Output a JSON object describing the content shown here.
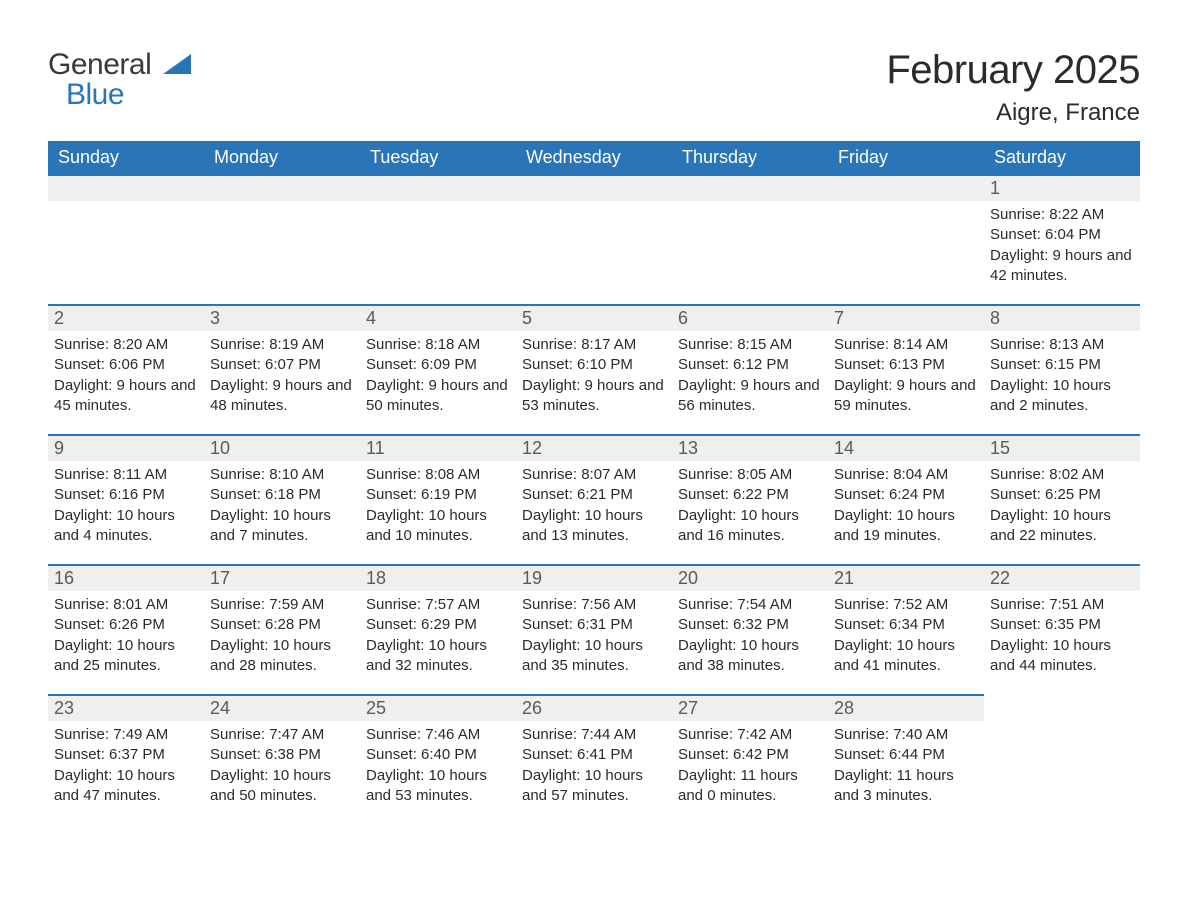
{
  "logo": {
    "text_general": "General",
    "text_blue": "Blue",
    "triangle_color": "#2a74b8"
  },
  "title": "February 2025",
  "location": "Aigre, France",
  "colors": {
    "header_bg": "#2a74b8",
    "header_text": "#ffffff",
    "daybar_bg": "#efefef",
    "daybar_border": "#2a74b8",
    "body_text": "#2b2b2b",
    "daynum_text": "#5a5a5a",
    "page_bg": "#ffffff"
  },
  "weekdays": [
    "Sunday",
    "Monday",
    "Tuesday",
    "Wednesday",
    "Thursday",
    "Friday",
    "Saturday"
  ],
  "weeks": [
    [
      {
        "empty": true
      },
      {
        "empty": true
      },
      {
        "empty": true
      },
      {
        "empty": true
      },
      {
        "empty": true
      },
      {
        "empty": true
      },
      {
        "day": "1",
        "sunrise": "Sunrise: 8:22 AM",
        "sunset": "Sunset: 6:04 PM",
        "daylight": "Daylight: 9 hours and 42 minutes."
      }
    ],
    [
      {
        "day": "2",
        "sunrise": "Sunrise: 8:20 AM",
        "sunset": "Sunset: 6:06 PM",
        "daylight": "Daylight: 9 hours and 45 minutes."
      },
      {
        "day": "3",
        "sunrise": "Sunrise: 8:19 AM",
        "sunset": "Sunset: 6:07 PM",
        "daylight": "Daylight: 9 hours and 48 minutes."
      },
      {
        "day": "4",
        "sunrise": "Sunrise: 8:18 AM",
        "sunset": "Sunset: 6:09 PM",
        "daylight": "Daylight: 9 hours and 50 minutes."
      },
      {
        "day": "5",
        "sunrise": "Sunrise: 8:17 AM",
        "sunset": "Sunset: 6:10 PM",
        "daylight": "Daylight: 9 hours and 53 minutes."
      },
      {
        "day": "6",
        "sunrise": "Sunrise: 8:15 AM",
        "sunset": "Sunset: 6:12 PM",
        "daylight": "Daylight: 9 hours and 56 minutes."
      },
      {
        "day": "7",
        "sunrise": "Sunrise: 8:14 AM",
        "sunset": "Sunset: 6:13 PM",
        "daylight": "Daylight: 9 hours and 59 minutes."
      },
      {
        "day": "8",
        "sunrise": "Sunrise: 8:13 AM",
        "sunset": "Sunset: 6:15 PM",
        "daylight": "Daylight: 10 hours and 2 minutes."
      }
    ],
    [
      {
        "day": "9",
        "sunrise": "Sunrise: 8:11 AM",
        "sunset": "Sunset: 6:16 PM",
        "daylight": "Daylight: 10 hours and 4 minutes."
      },
      {
        "day": "10",
        "sunrise": "Sunrise: 8:10 AM",
        "sunset": "Sunset: 6:18 PM",
        "daylight": "Daylight: 10 hours and 7 minutes."
      },
      {
        "day": "11",
        "sunrise": "Sunrise: 8:08 AM",
        "sunset": "Sunset: 6:19 PM",
        "daylight": "Daylight: 10 hours and 10 minutes."
      },
      {
        "day": "12",
        "sunrise": "Sunrise: 8:07 AM",
        "sunset": "Sunset: 6:21 PM",
        "daylight": "Daylight: 10 hours and 13 minutes."
      },
      {
        "day": "13",
        "sunrise": "Sunrise: 8:05 AM",
        "sunset": "Sunset: 6:22 PM",
        "daylight": "Daylight: 10 hours and 16 minutes."
      },
      {
        "day": "14",
        "sunrise": "Sunrise: 8:04 AM",
        "sunset": "Sunset: 6:24 PM",
        "daylight": "Daylight: 10 hours and 19 minutes."
      },
      {
        "day": "15",
        "sunrise": "Sunrise: 8:02 AM",
        "sunset": "Sunset: 6:25 PM",
        "daylight": "Daylight: 10 hours and 22 minutes."
      }
    ],
    [
      {
        "day": "16",
        "sunrise": "Sunrise: 8:01 AM",
        "sunset": "Sunset: 6:26 PM",
        "daylight": "Daylight: 10 hours and 25 minutes."
      },
      {
        "day": "17",
        "sunrise": "Sunrise: 7:59 AM",
        "sunset": "Sunset: 6:28 PM",
        "daylight": "Daylight: 10 hours and 28 minutes."
      },
      {
        "day": "18",
        "sunrise": "Sunrise: 7:57 AM",
        "sunset": "Sunset: 6:29 PM",
        "daylight": "Daylight: 10 hours and 32 minutes."
      },
      {
        "day": "19",
        "sunrise": "Sunrise: 7:56 AM",
        "sunset": "Sunset: 6:31 PM",
        "daylight": "Daylight: 10 hours and 35 minutes."
      },
      {
        "day": "20",
        "sunrise": "Sunrise: 7:54 AM",
        "sunset": "Sunset: 6:32 PM",
        "daylight": "Daylight: 10 hours and 38 minutes."
      },
      {
        "day": "21",
        "sunrise": "Sunrise: 7:52 AM",
        "sunset": "Sunset: 6:34 PM",
        "daylight": "Daylight: 10 hours and 41 minutes."
      },
      {
        "day": "22",
        "sunrise": "Sunrise: 7:51 AM",
        "sunset": "Sunset: 6:35 PM",
        "daylight": "Daylight: 10 hours and 44 minutes."
      }
    ],
    [
      {
        "day": "23",
        "sunrise": "Sunrise: 7:49 AM",
        "sunset": "Sunset: 6:37 PM",
        "daylight": "Daylight: 10 hours and 47 minutes."
      },
      {
        "day": "24",
        "sunrise": "Sunrise: 7:47 AM",
        "sunset": "Sunset: 6:38 PM",
        "daylight": "Daylight: 10 hours and 50 minutes."
      },
      {
        "day": "25",
        "sunrise": "Sunrise: 7:46 AM",
        "sunset": "Sunset: 6:40 PM",
        "daylight": "Daylight: 10 hours and 53 minutes."
      },
      {
        "day": "26",
        "sunrise": "Sunrise: 7:44 AM",
        "sunset": "Sunset: 6:41 PM",
        "daylight": "Daylight: 10 hours and 57 minutes."
      },
      {
        "day": "27",
        "sunrise": "Sunrise: 7:42 AM",
        "sunset": "Sunset: 6:42 PM",
        "daylight": "Daylight: 11 hours and 0 minutes."
      },
      {
        "day": "28",
        "sunrise": "Sunrise: 7:40 AM",
        "sunset": "Sunset: 6:44 PM",
        "daylight": "Daylight: 11 hours and 3 minutes."
      },
      {
        "empty": true
      }
    ]
  ]
}
